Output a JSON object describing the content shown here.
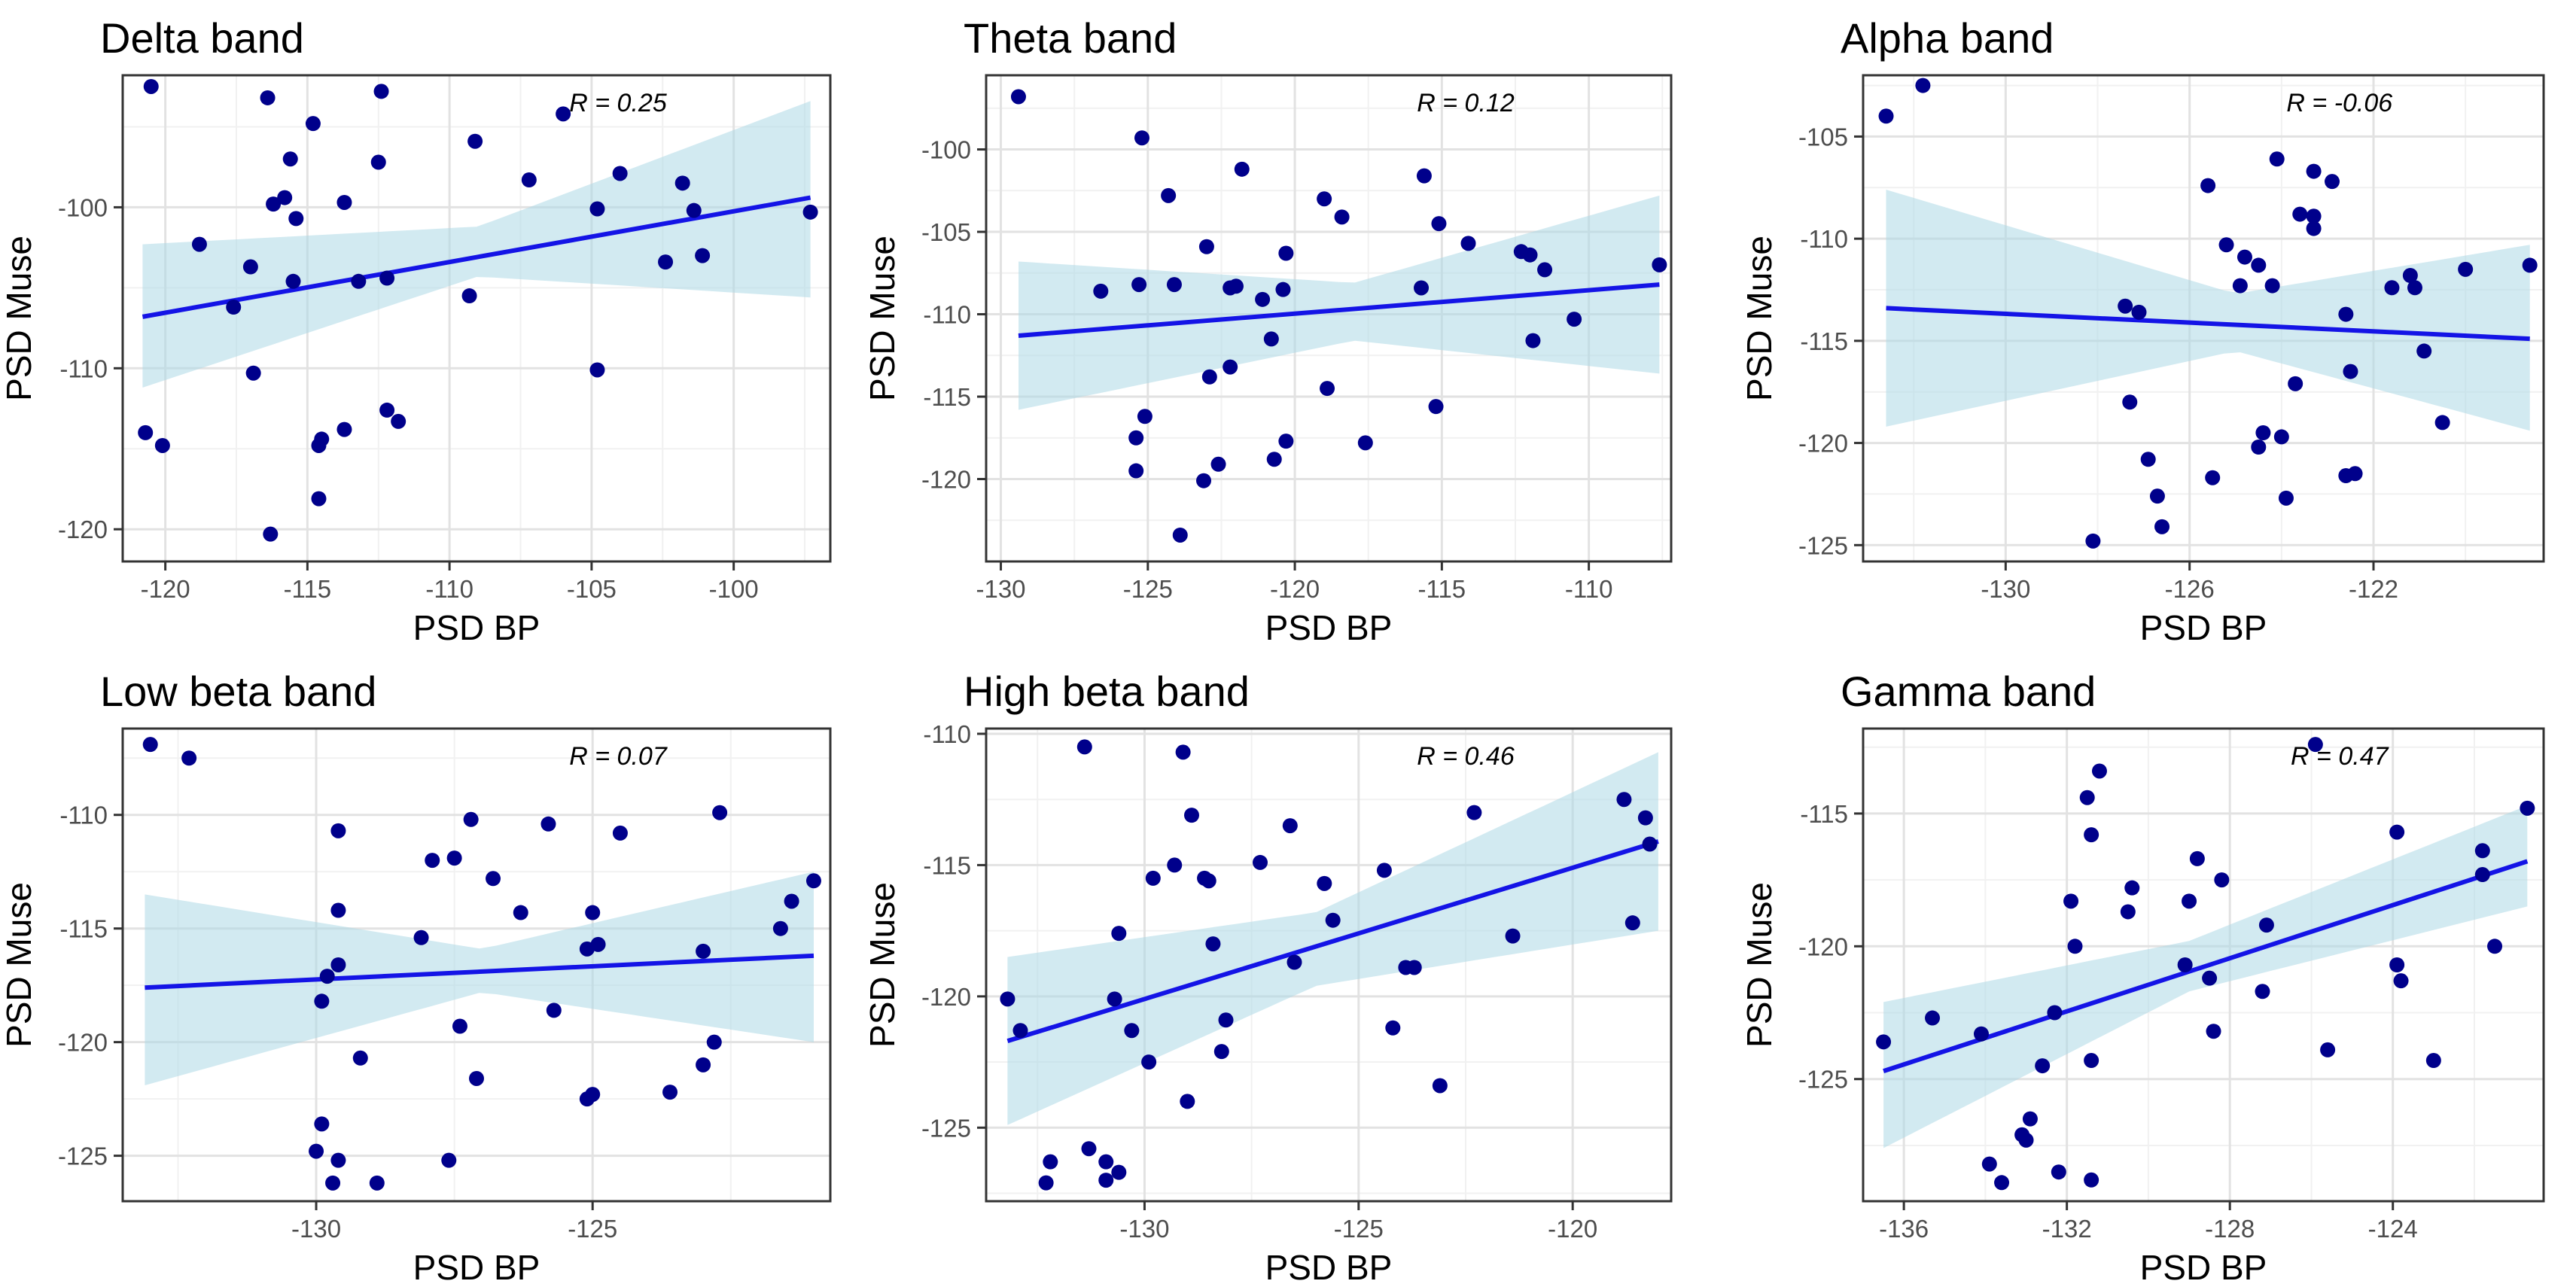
{
  "colors": {
    "point": "#00008b",
    "line": "#1414e6",
    "band": "#add8e6",
    "grid_major": "#e2e2e2",
    "grid_minor": "#f1f1f1",
    "frame": "#333333"
  },
  "chart_data": [
    {
      "type": "scatter",
      "title": "Delta band",
      "xlabel": "PSD BP",
      "ylabel": "PSD Muse",
      "annotation": "R = 0.25",
      "xlim": [
        -121.5,
        -96.6
      ],
      "ylim": [
        -122.0,
        -91.8
      ],
      "xticks": [
        -120,
        -115,
        -110,
        -105,
        -100
      ],
      "yticks": [
        -120,
        -110,
        -100
      ],
      "fit": {
        "x": [
          -120.8,
          -97.3
        ],
        "y": [
          -106.8,
          -99.4
        ]
      },
      "band": {
        "x": [
          -120.8,
          -109,
          -97.3
        ],
        "lower": [
          -111.2,
          -104.3,
          -105.6
        ],
        "upper": [
          -102.3,
          -101.2,
          -93.4
        ]
      },
      "points": [
        [
          -120.5,
          -92.5
        ],
        [
          -116.4,
          -93.2
        ],
        [
          -112.4,
          -92.8
        ],
        [
          -114.8,
          -94.8
        ],
        [
          -106.0,
          -94.2
        ],
        [
          -109.1,
          -95.9
        ],
        [
          -115.6,
          -97.0
        ],
        [
          -112.5,
          -97.2
        ],
        [
          -107.2,
          -98.3
        ],
        [
          -104.0,
          -97.9
        ],
        [
          -101.8,
          -98.5
        ],
        [
          -116.2,
          -99.8
        ],
        [
          -115.8,
          -99.4
        ],
        [
          -113.7,
          -99.7
        ],
        [
          -115.4,
          -100.7
        ],
        [
          -104.8,
          -100.1
        ],
        [
          -101.4,
          -100.2
        ],
        [
          -97.3,
          -100.3
        ],
        [
          -118.8,
          -102.3
        ],
        [
          -117.0,
          -103.7
        ],
        [
          -117.6,
          -106.2
        ],
        [
          -115.5,
          -104.6
        ],
        [
          -113.2,
          -104.6
        ],
        [
          -112.2,
          -104.4
        ],
        [
          -109.3,
          -105.5
        ],
        [
          -102.4,
          -103.4
        ],
        [
          -101.1,
          -103.0
        ],
        [
          -116.9,
          -110.3
        ],
        [
          -104.8,
          -110.1
        ],
        [
          -120.7,
          -114.0
        ],
        [
          -120.1,
          -114.8
        ],
        [
          -114.6,
          -114.8
        ],
        [
          -114.5,
          -114.4
        ],
        [
          -113.7,
          -113.8
        ],
        [
          -112.2,
          -112.6
        ],
        [
          -111.8,
          -113.3
        ],
        [
          -114.6,
          -118.1
        ],
        [
          -116.3,
          -120.3
        ]
      ]
    },
    {
      "type": "scatter",
      "title": "Theta band",
      "xlabel": "PSD BP",
      "ylabel": "PSD Muse",
      "annotation": "R = 0.12",
      "xlim": [
        -130.5,
        -107.2
      ],
      "ylim": [
        -125.0,
        -95.5
      ],
      "xticks": [
        -130,
        -125,
        -120,
        -115,
        -110
      ],
      "yticks": [
        -120,
        -115,
        -110,
        -105,
        -100
      ],
      "fit": {
        "x": [
          -129.4,
          -107.6
        ],
        "y": [
          -111.3,
          -108.2
        ]
      },
      "band": {
        "x": [
          -129.4,
          -118,
          -107.6
        ],
        "lower": [
          -115.8,
          -111.6,
          -113.6
        ],
        "upper": [
          -106.8,
          -108.1,
          -102.8
        ]
      },
      "points": [
        [
          -129.4,
          -96.8
        ],
        [
          -125.2,
          -99.3
        ],
        [
          -124.3,
          -102.8
        ],
        [
          -121.8,
          -101.2
        ],
        [
          -119.0,
          -103.0
        ],
        [
          -118.4,
          -104.1
        ],
        [
          -115.6,
          -101.6
        ],
        [
          -115.1,
          -104.5
        ],
        [
          -114.1,
          -105.7
        ],
        [
          -112.3,
          -106.2
        ],
        [
          -112.0,
          -106.4
        ],
        [
          -111.5,
          -107.3
        ],
        [
          -107.6,
          -107.0
        ],
        [
          -126.6,
          -108.6
        ],
        [
          -125.3,
          -108.2
        ],
        [
          -124.1,
          -108.2
        ],
        [
          -123.0,
          -105.9
        ],
        [
          -122.2,
          -108.4
        ],
        [
          -122.0,
          -108.3
        ],
        [
          -120.3,
          -106.3
        ],
        [
          -120.4,
          -108.5
        ],
        [
          -115.7,
          -108.4
        ],
        [
          -120.8,
          -111.5
        ],
        [
          -121.1,
          -109.1
        ],
        [
          -122.9,
          -113.8
        ],
        [
          -122.2,
          -113.2
        ],
        [
          -118.9,
          -114.5
        ],
        [
          -111.9,
          -111.6
        ],
        [
          -110.5,
          -110.3
        ],
        [
          -125.1,
          -116.2
        ],
        [
          -125.4,
          -117.5
        ],
        [
          -125.4,
          -119.5
        ],
        [
          -122.6,
          -119.1
        ],
        [
          -123.1,
          -120.1
        ],
        [
          -120.3,
          -117.7
        ],
        [
          -120.7,
          -118.8
        ],
        [
          -117.6,
          -117.8
        ],
        [
          -115.2,
          -115.6
        ],
        [
          -123.9,
          -123.4
        ]
      ]
    },
    {
      "type": "scatter",
      "title": "Alpha band",
      "xlabel": "PSD BP",
      "ylabel": "PSD Muse",
      "annotation": "R = -0.06",
      "xlim": [
        -133.1,
        -118.3
      ],
      "ylim": [
        -125.8,
        -102.0
      ],
      "xticks": [
        -130,
        -126,
        -122
      ],
      "yticks": [
        -125,
        -120,
        -115,
        -110,
        -105
      ],
      "fit": {
        "x": [
          -132.6,
          -118.6
        ],
        "y": [
          -113.4,
          -114.9
        ]
      },
      "band": {
        "x": [
          -132.6,
          -125,
          -118.6
        ],
        "lower": [
          -119.2,
          -115.5,
          -119.4
        ],
        "upper": [
          -107.6,
          -112.7,
          -110.3
        ]
      },
      "points": [
        [
          -132.6,
          -104.0
        ],
        [
          -131.8,
          -102.5
        ],
        [
          -124.1,
          -106.1
        ],
        [
          -123.3,
          -106.7
        ],
        [
          -122.9,
          -107.2
        ],
        [
          -125.6,
          -107.4
        ],
        [
          -123.6,
          -108.8
        ],
        [
          -123.3,
          -108.9
        ],
        [
          -123.3,
          -109.5
        ],
        [
          -125.2,
          -110.3
        ],
        [
          -124.8,
          -110.9
        ],
        [
          -124.5,
          -111.3
        ],
        [
          -124.2,
          -112.3
        ],
        [
          -124.9,
          -112.3
        ],
        [
          -122.6,
          -113.7
        ],
        [
          -121.6,
          -112.4
        ],
        [
          -121.1,
          -112.4
        ],
        [
          -121.2,
          -111.8
        ],
        [
          -120.0,
          -111.5
        ],
        [
          -118.6,
          -111.3
        ],
        [
          -127.4,
          -113.3
        ],
        [
          -127.1,
          -113.6
        ],
        [
          -122.5,
          -116.5
        ],
        [
          -120.9,
          -115.5
        ],
        [
          -127.3,
          -118.0
        ],
        [
          -123.7,
          -117.1
        ],
        [
          -125.5,
          -121.7
        ],
        [
          -126.9,
          -120.8
        ],
        [
          -126.7,
          -122.6
        ],
        [
          -126.6,
          -124.1
        ],
        [
          -124.5,
          -120.2
        ],
        [
          -124.4,
          -119.5
        ],
        [
          -124.0,
          -119.7
        ],
        [
          -123.9,
          -122.7
        ],
        [
          -122.6,
          -121.6
        ],
        [
          -122.4,
          -121.5
        ],
        [
          -120.5,
          -119.0
        ],
        [
          -128.1,
          -124.8
        ]
      ]
    },
    {
      "type": "scatter",
      "title": "Low beta band",
      "xlabel": "PSD BP",
      "ylabel": "PSD Muse",
      "annotation": "R = 0.07",
      "xlim": [
        -133.5,
        -120.7
      ],
      "ylim": [
        -127.0,
        -106.2
      ],
      "xticks": [
        -130,
        -125
      ],
      "yticks": [
        -125,
        -120,
        -115,
        -110
      ],
      "fit": {
        "x": [
          -133.1,
          -121.0
        ],
        "y": [
          -117.6,
          -116.2
        ]
      },
      "band": {
        "x": [
          -133.1,
          -127,
          -121.0
        ],
        "lower": [
          -121.9,
          -117.8,
          -120.0
        ],
        "upper": [
          -113.5,
          -115.9,
          -112.5
        ]
      },
      "points": [
        [
          -133.0,
          -106.9
        ],
        [
          -132.3,
          -107.5
        ],
        [
          -129.6,
          -110.7
        ],
        [
          -127.2,
          -110.2
        ],
        [
          -125.8,
          -110.4
        ],
        [
          -124.5,
          -110.8
        ],
        [
          -122.7,
          -109.9
        ],
        [
          -127.9,
          -112.0
        ],
        [
          -127.5,
          -111.9
        ],
        [
          -126.8,
          -112.8
        ],
        [
          -126.3,
          -114.3
        ],
        [
          -125.0,
          -114.3
        ],
        [
          -129.6,
          -114.2
        ],
        [
          -128.1,
          -115.4
        ],
        [
          -125.1,
          -115.9
        ],
        [
          -124.9,
          -115.7
        ],
        [
          -123.0,
          -116.0
        ],
        [
          -121.6,
          -115.0
        ],
        [
          -121.4,
          -113.8
        ],
        [
          -121.0,
          -112.9
        ],
        [
          -129.9,
          -118.2
        ],
        [
          -129.8,
          -117.1
        ],
        [
          -129.6,
          -116.6
        ],
        [
          -125.7,
          -118.6
        ],
        [
          -127.4,
          -119.3
        ],
        [
          -129.2,
          -120.7
        ],
        [
          -127.1,
          -121.6
        ],
        [
          -125.0,
          -122.3
        ],
        [
          -125.1,
          -122.5
        ],
        [
          -123.6,
          -122.2
        ],
        [
          -123.0,
          -121.0
        ],
        [
          -122.8,
          -120.0
        ],
        [
          -129.9,
          -123.6
        ],
        [
          -130.0,
          -124.8
        ],
        [
          -129.6,
          -125.2
        ],
        [
          -129.7,
          -126.2
        ],
        [
          -128.9,
          -126.2
        ],
        [
          -127.6,
          -125.2
        ]
      ]
    },
    {
      "type": "scatter",
      "title": "High beta band",
      "xlabel": "PSD BP",
      "ylabel": "PSD Muse",
      "annotation": "R = 0.46",
      "xlim": [
        -133.7,
        -117.7
      ],
      "ylim": [
        -127.8,
        -109.8
      ],
      "xticks": [
        -130,
        -125,
        -120
      ],
      "yticks": [
        -125,
        -120,
        -115,
        -110
      ],
      "fit": {
        "x": [
          -133.2,
          -118.0
        ],
        "y": [
          -121.7,
          -114.1
        ]
      },
      "band": {
        "x": [
          -133.2,
          -126,
          -118.0
        ],
        "lower": [
          -124.9,
          -119.6,
          -117.5
        ],
        "upper": [
          -118.5,
          -116.8,
          -110.7
        ]
      },
      "points": [
        [
          -131.4,
          -110.5
        ],
        [
          -129.1,
          -110.7
        ],
        [
          -128.9,
          -113.1
        ],
        [
          -126.6,
          -113.5
        ],
        [
          -122.3,
          -113.0
        ],
        [
          -118.8,
          -112.5
        ],
        [
          -118.3,
          -113.2
        ],
        [
          -118.2,
          -114.2
        ],
        [
          -129.3,
          -115.0
        ],
        [
          -128.6,
          -115.5
        ],
        [
          -128.5,
          -115.6
        ],
        [
          -129.8,
          -115.5
        ],
        [
          -127.3,
          -114.9
        ],
        [
          -125.8,
          -115.7
        ],
        [
          -124.4,
          -115.2
        ],
        [
          -130.6,
          -117.6
        ],
        [
          -128.4,
          -118.0
        ],
        [
          -125.6,
          -117.1
        ],
        [
          -121.4,
          -117.7
        ],
        [
          -118.6,
          -117.2
        ],
        [
          -126.5,
          -118.7
        ],
        [
          -123.9,
          -118.9
        ],
        [
          -123.7,
          -118.9
        ],
        [
          -130.7,
          -120.1
        ],
        [
          -130.3,
          -121.3
        ],
        [
          -128.1,
          -120.9
        ],
        [
          -128.2,
          -122.1
        ],
        [
          -129.9,
          -122.5
        ],
        [
          -124.2,
          -121.2
        ],
        [
          -123.1,
          -123.4
        ],
        [
          -129.0,
          -124.0
        ],
        [
          -133.2,
          -120.1
        ],
        [
          -132.9,
          -121.3
        ],
        [
          -132.2,
          -126.3
        ],
        [
          -132.3,
          -127.1
        ],
        [
          -131.3,
          -125.8
        ],
        [
          -130.9,
          -126.3
        ],
        [
          -130.6,
          -126.7
        ],
        [
          -130.9,
          -127.0
        ]
      ]
    },
    {
      "type": "scatter",
      "title": "Gamma band",
      "xlabel": "PSD BP",
      "ylabel": "PSD Muse",
      "annotation": "R = 0.47",
      "xlim": [
        -137.0,
        -120.3
      ],
      "ylim": [
        -129.6,
        -111.8
      ],
      "xticks": [
        -136,
        -132,
        -128,
        -124
      ],
      "yticks": [
        -125,
        -120,
        -115
      ],
      "fit": {
        "x": [
          -136.5,
          -120.7
        ],
        "y": [
          -124.7,
          -116.8
        ]
      },
      "band": {
        "x": [
          -136.5,
          -129,
          -120.7
        ],
        "lower": [
          -127.6,
          -121.7,
          -118.5
        ],
        "upper": [
          -122.1,
          -119.8,
          -114.7
        ]
      },
      "points": [
        [
          -125.9,
          -112.4
        ],
        [
          -131.2,
          -113.4
        ],
        [
          -131.5,
          -114.4
        ],
        [
          -131.4,
          -115.8
        ],
        [
          -123.9,
          -115.7
        ],
        [
          -120.7,
          -114.8
        ],
        [
          -121.8,
          -116.4
        ],
        [
          -130.4,
          -117.8
        ],
        [
          -130.5,
          -118.7
        ],
        [
          -129.0,
          -118.3
        ],
        [
          -128.8,
          -116.7
        ],
        [
          -128.2,
          -117.5
        ],
        [
          -127.1,
          -119.2
        ],
        [
          -121.8,
          -117.3
        ],
        [
          -121.5,
          -120.0
        ],
        [
          -131.9,
          -118.3
        ],
        [
          -131.8,
          -120.0
        ],
        [
          -128.5,
          -121.2
        ],
        [
          -129.1,
          -120.7
        ],
        [
          -127.2,
          -121.7
        ],
        [
          -123.9,
          -120.7
        ],
        [
          -123.8,
          -121.3
        ],
        [
          -132.6,
          -124.5
        ],
        [
          -131.4,
          -124.3
        ],
        [
          -132.3,
          -122.5
        ],
        [
          -128.4,
          -123.2
        ],
        [
          -125.6,
          -123.9
        ],
        [
          -123.0,
          -124.3
        ],
        [
          -136.5,
          -123.6
        ],
        [
          -135.3,
          -122.7
        ],
        [
          -134.1,
          -123.3
        ],
        [
          -132.9,
          -126.5
        ],
        [
          -133.1,
          -127.1
        ],
        [
          -133.0,
          -127.3
        ],
        [
          -133.9,
          -128.2
        ],
        [
          -133.6,
          -128.9
        ],
        [
          -132.2,
          -128.5
        ],
        [
          -131.4,
          -128.8
        ]
      ]
    }
  ]
}
